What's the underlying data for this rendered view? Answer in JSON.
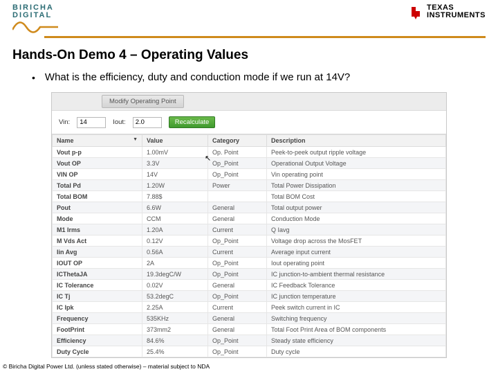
{
  "header": {
    "biricha_line1": "BIRICHA",
    "biricha_line2": "DIGITAL",
    "ti_line1": "TEXAS",
    "ti_line2": "INSTRUMENTS"
  },
  "title": "Hands-On Demo 4 – Operating Values",
  "bullet": "What is the efficiency, duty and conduction mode if we run at 14V?",
  "app": {
    "modify_label": "Modify Operating Point",
    "vin_label": "Vin:",
    "vin_value": "14",
    "iout_label": "Iout:",
    "iout_value": "2.0",
    "recalc_label": "Recalculate",
    "columns": [
      "Name",
      "Value",
      "Category",
      "Description"
    ],
    "rows": [
      {
        "name": "Vout p-p",
        "value": "1.00mV",
        "cat": "Op. Point",
        "desc": "Peek-to-peek output ripple voltage"
      },
      {
        "name": "Vout OP",
        "value": "3.3V",
        "cat": "Op_Point",
        "desc": "Operational Output Voltage"
      },
      {
        "name": "VIN OP",
        "value": "14V",
        "cat": "Op_Point",
        "desc": "Vin operating point"
      },
      {
        "name": "Total Pd",
        "value": "1.20W",
        "cat": "Power",
        "desc": "Total Power Dissipation"
      },
      {
        "name": "Total BOM",
        "value": "7.88$",
        "cat": "",
        "desc": "Total BOM Cost"
      },
      {
        "name": "Pout",
        "value": "6.6W",
        "cat": "General",
        "desc": "Total output power"
      },
      {
        "name": "Mode",
        "value": "CCM",
        "cat": "General",
        "desc": "Conduction Mode"
      },
      {
        "name": "M1 Irms",
        "value": "1.20A",
        "cat": "Current",
        "desc": "Q Iavg"
      },
      {
        "name": "M Vds Act",
        "value": "0.12V",
        "cat": "Op_Point",
        "desc": "Voltage drop across the MosFET"
      },
      {
        "name": "Iin Avg",
        "value": "0.56A",
        "cat": "Current",
        "desc": "Average input current"
      },
      {
        "name": "IOUT OP",
        "value": "2A",
        "cat": "Op_Point",
        "desc": "Iout operating point"
      },
      {
        "name": "ICThetaJA",
        "value": "19.3degC/W",
        "cat": "Op_Point",
        "desc": "IC junction-to-ambient thermal resistance"
      },
      {
        "name": "IC Tolerance",
        "value": "0.02V",
        "cat": "General",
        "desc": "IC Feedback Tolerance"
      },
      {
        "name": "IC Tj",
        "value": "53.2degC",
        "cat": "Op_Point",
        "desc": "IC junction temperature"
      },
      {
        "name": "IC Ipk",
        "value": "2.25A",
        "cat": "Current",
        "desc": "Peek switch current in IC"
      },
      {
        "name": "Frequency",
        "value": "535KHz",
        "cat": "General",
        "desc": "Switching frequency"
      },
      {
        "name": "FootPrint",
        "value": "373mm2",
        "cat": "General",
        "desc": "Total Foot Print Area of BOM components"
      },
      {
        "name": "Efficiency",
        "value": "84.6%",
        "cat": "Op_Point",
        "desc": "Steady state efficiency"
      },
      {
        "name": "Duty Cycle",
        "value": "25.4%",
        "cat": "Op_Point",
        "desc": "Duty cycle"
      }
    ]
  },
  "footer": "© Biricha Digital Power Ltd. (unless stated otherwise) – material subject to NDA",
  "colors": {
    "accent_orange": "#cf8a1c",
    "biricha_teal": "#2b6c74",
    "ti_red": "#cc0000",
    "recalc_green": "#4fa838",
    "row_alt": "#f4f5f7",
    "border": "#dcdcdc"
  }
}
